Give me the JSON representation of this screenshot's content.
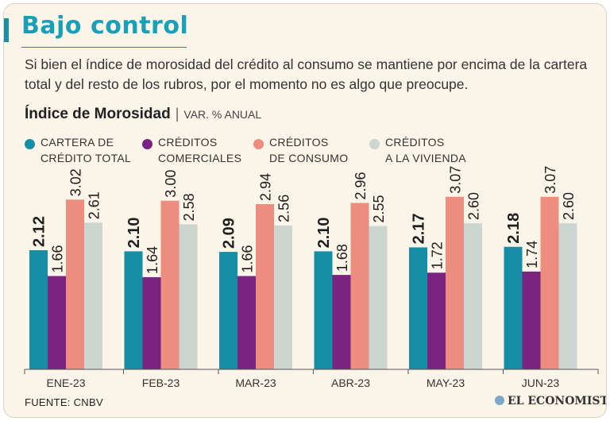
{
  "header": {
    "title": "Bajo control",
    "subtitle": "Si bien el índice de morosidad del crédito al consumo se mantiene por encima de la cartera total y del resto de los rubros, por el momento no es algo que preocupe."
  },
  "chart_heading": {
    "main": "Índice de Morosidad",
    "separator": "|",
    "unit": "VAR. % ANUAL"
  },
  "legend": [
    {
      "line1": "CARTERA DE",
      "line2": "CRÉDITO TOTAL",
      "color": "#178ea6"
    },
    {
      "line1": "CRÉDITOS",
      "line2": "COMERCIALES",
      "color": "#7b2381"
    },
    {
      "line1": "CRÉDITOS",
      "line2": "DE CONSUMO",
      "color": "#ec8d80"
    },
    {
      "line1": "CRÉDITOS",
      "line2": "A LA VIVIENDA",
      "color": "#cdd5d1"
    }
  ],
  "chart_data": {
    "type": "bar",
    "categories": [
      "ENE-23",
      "FEB-23",
      "MAR-23",
      "ABR-23",
      "MAY-23",
      "JUN-23"
    ],
    "series": [
      {
        "name": "CARTERA DE CRÉDITO TOTAL",
        "color": "#178ea6",
        "values": [
          2.12,
          2.1,
          2.09,
          2.1,
          2.17,
          2.18
        ],
        "labels": [
          "2.12",
          "2.10",
          "2.09",
          "2.10",
          "2.17",
          "2.18"
        ]
      },
      {
        "name": "CRÉDITOS COMERCIALES",
        "color": "#7b2381",
        "values": [
          1.66,
          1.64,
          1.66,
          1.68,
          1.72,
          1.74
        ],
        "labels": [
          "1.66",
          "1.64",
          "1.66",
          "1.68",
          "1.72",
          "1.74"
        ]
      },
      {
        "name": "CRÉDITOS DE CONSUMO",
        "color": "#ec8d80",
        "values": [
          3.02,
          3.0,
          2.94,
          2.96,
          3.07,
          3.07
        ],
        "labels": [
          "3.02",
          "3.00",
          "2.94",
          "2.96",
          "3.07",
          "3.07"
        ]
      },
      {
        "name": "CRÉDITOS A LA VIVIENDA",
        "color": "#cdd5d1",
        "values": [
          2.61,
          2.58,
          2.56,
          2.55,
          2.6,
          2.6
        ],
        "labels": [
          "2.61",
          "2.58",
          "2.56",
          "2.55",
          "2.60",
          "2.60"
        ]
      }
    ],
    "ylim": [
      0,
      3.25
    ],
    "grid": false,
    "legend_position": "top"
  },
  "footer": {
    "source": "FUENTE: CNBV",
    "brand": "EL ECONOMISTA"
  }
}
